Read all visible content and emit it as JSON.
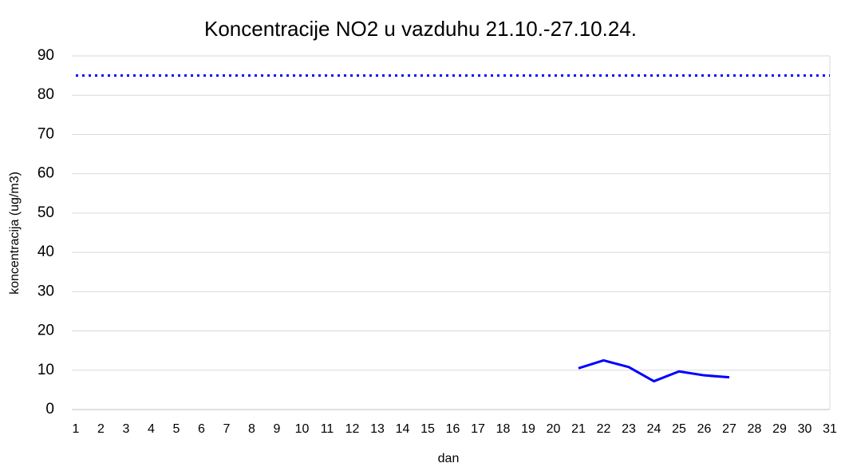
{
  "chart_data": {
    "type": "line",
    "title": "Koncentracije  NO2 u vazduhu  21.10.-27.10.24.",
    "x_label": "dan",
    "y_label": "koncentracija (ug/m3)",
    "x": [
      1,
      2,
      3,
      4,
      5,
      6,
      7,
      8,
      9,
      10,
      11,
      12,
      13,
      14,
      15,
      16,
      17,
      18,
      19,
      20,
      21,
      22,
      23,
      24,
      25,
      26,
      27,
      28,
      29,
      30,
      31
    ],
    "xlim": [
      1,
      31
    ],
    "ylim": [
      0,
      90
    ],
    "yticks": [
      0,
      10,
      20,
      30,
      40,
      50,
      60,
      70,
      80,
      90
    ],
    "grid": true,
    "series": [
      {
        "color": "#0000ff",
        "dash": "dotted",
        "values": [
          85,
          85,
          85,
          85,
          85,
          85,
          85,
          85,
          85,
          85,
          85,
          85,
          85,
          85,
          85,
          85,
          85,
          85,
          85,
          85,
          85,
          85,
          85,
          85,
          85,
          85,
          85,
          85,
          85,
          85,
          85
        ]
      },
      {
        "color": "#0000ff",
        "dash": "solid",
        "values": [
          null,
          null,
          null,
          null,
          null,
          null,
          null,
          null,
          null,
          null,
          null,
          null,
          null,
          null,
          null,
          null,
          null,
          null,
          null,
          null,
          10.5,
          12.5,
          10.8,
          7.2,
          9.7,
          8.7,
          8.2,
          null,
          null,
          null,
          null
        ]
      }
    ]
  }
}
